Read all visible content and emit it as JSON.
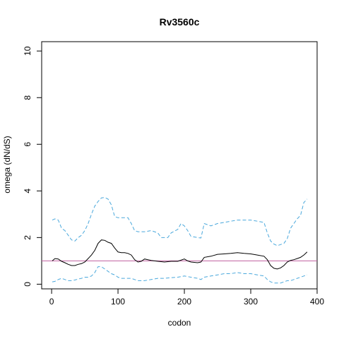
{
  "chart_data": {
    "type": "line",
    "title": "Rv3560c",
    "xlabel": "codon",
    "ylabel": "omega (dN/dS)",
    "xlim": [
      -15,
      400
    ],
    "ylim": [
      -0.2,
      10.4
    ],
    "xticks": [
      0,
      100,
      200,
      300,
      400
    ],
    "yticks": [
      0,
      2,
      4,
      6,
      8,
      10
    ],
    "reference_line": {
      "y": 1,
      "color": "#c060a0"
    },
    "grid": false,
    "legend": "none",
    "series": [
      {
        "color": "#000000",
        "dash": "solid",
        "points": [
          [
            1,
            1.0
          ],
          [
            5,
            1.1
          ],
          [
            10,
            1.08
          ],
          [
            15,
            0.98
          ],
          [
            20,
            0.92
          ],
          [
            25,
            0.85
          ],
          [
            30,
            0.8
          ],
          [
            35,
            0.8
          ],
          [
            40,
            0.85
          ],
          [
            45,
            0.88
          ],
          [
            50,
            0.95
          ],
          [
            55,
            1.1
          ],
          [
            60,
            1.25
          ],
          [
            65,
            1.45
          ],
          [
            70,
            1.75
          ],
          [
            75,
            1.9
          ],
          [
            80,
            1.88
          ],
          [
            85,
            1.8
          ],
          [
            90,
            1.75
          ],
          [
            95,
            1.55
          ],
          [
            100,
            1.38
          ],
          [
            105,
            1.35
          ],
          [
            110,
            1.35
          ],
          [
            115,
            1.32
          ],
          [
            120,
            1.25
          ],
          [
            125,
            1.05
          ],
          [
            130,
            0.95
          ],
          [
            135,
            0.98
          ],
          [
            140,
            1.08
          ],
          [
            145,
            1.05
          ],
          [
            150,
            1.02
          ],
          [
            160,
            0.98
          ],
          [
            170,
            0.95
          ],
          [
            180,
            0.98
          ],
          [
            190,
            0.98
          ],
          [
            200,
            1.08
          ],
          [
            205,
            1.0
          ],
          [
            210,
            0.95
          ],
          [
            220,
            0.92
          ],
          [
            225,
            0.95
          ],
          [
            230,
            1.15
          ],
          [
            240,
            1.2
          ],
          [
            250,
            1.28
          ],
          [
            260,
            1.3
          ],
          [
            270,
            1.32
          ],
          [
            280,
            1.35
          ],
          [
            290,
            1.32
          ],
          [
            300,
            1.3
          ],
          [
            310,
            1.25
          ],
          [
            320,
            1.2
          ],
          [
            325,
            1.05
          ],
          [
            330,
            0.8
          ],
          [
            335,
            0.68
          ],
          [
            340,
            0.65
          ],
          [
            345,
            0.7
          ],
          [
            350,
            0.8
          ],
          [
            355,
            0.95
          ],
          [
            360,
            1.02
          ],
          [
            365,
            1.05
          ],
          [
            370,
            1.1
          ],
          [
            375,
            1.15
          ],
          [
            380,
            1.25
          ],
          [
            385,
            1.38
          ]
        ]
      },
      {
        "color": "#4aa8dc",
        "dash": "dashed",
        "points": [
          [
            1,
            2.75
          ],
          [
            5,
            2.8
          ],
          [
            10,
            2.75
          ],
          [
            15,
            2.4
          ],
          [
            20,
            2.3
          ],
          [
            25,
            2.1
          ],
          [
            30,
            1.9
          ],
          [
            35,
            1.85
          ],
          [
            40,
            2.0
          ],
          [
            45,
            2.1
          ],
          [
            50,
            2.3
          ],
          [
            55,
            2.6
          ],
          [
            60,
            3.0
          ],
          [
            65,
            3.35
          ],
          [
            70,
            3.55
          ],
          [
            75,
            3.7
          ],
          [
            80,
            3.72
          ],
          [
            85,
            3.65
          ],
          [
            90,
            3.4
          ],
          [
            95,
            2.9
          ],
          [
            100,
            2.85
          ],
          [
            110,
            2.85
          ],
          [
            115,
            2.85
          ],
          [
            120,
            2.6
          ],
          [
            125,
            2.3
          ],
          [
            130,
            2.25
          ],
          [
            140,
            2.25
          ],
          [
            150,
            2.3
          ],
          [
            155,
            2.25
          ],
          [
            160,
            2.2
          ],
          [
            165,
            2.0
          ],
          [
            175,
            2.0
          ],
          [
            180,
            2.2
          ],
          [
            190,
            2.35
          ],
          [
            195,
            2.6
          ],
          [
            200,
            2.5
          ],
          [
            205,
            2.3
          ],
          [
            210,
            2.05
          ],
          [
            220,
            2.0
          ],
          [
            225,
            1.98
          ],
          [
            230,
            2.6
          ],
          [
            240,
            2.5
          ],
          [
            250,
            2.6
          ],
          [
            260,
            2.65
          ],
          [
            270,
            2.7
          ],
          [
            280,
            2.75
          ],
          [
            290,
            2.75
          ],
          [
            300,
            2.75
          ],
          [
            310,
            2.7
          ],
          [
            320,
            2.65
          ],
          [
            325,
            2.2
          ],
          [
            330,
            1.85
          ],
          [
            335,
            1.72
          ],
          [
            340,
            1.65
          ],
          [
            350,
            1.75
          ],
          [
            355,
            1.95
          ],
          [
            360,
            2.4
          ],
          [
            365,
            2.6
          ],
          [
            370,
            2.8
          ],
          [
            375,
            2.95
          ],
          [
            380,
            3.5
          ],
          [
            385,
            3.65
          ]
        ]
      },
      {
        "color": "#4aa8dc",
        "dash": "dashed",
        "points": [
          [
            1,
            0.1
          ],
          [
            5,
            0.12
          ],
          [
            10,
            0.2
          ],
          [
            15,
            0.25
          ],
          [
            20,
            0.2
          ],
          [
            25,
            0.15
          ],
          [
            30,
            0.15
          ],
          [
            35,
            0.18
          ],
          [
            40,
            0.22
          ],
          [
            45,
            0.25
          ],
          [
            50,
            0.3
          ],
          [
            55,
            0.3
          ],
          [
            60,
            0.35
          ],
          [
            65,
            0.5
          ],
          [
            70,
            0.75
          ],
          [
            75,
            0.75
          ],
          [
            80,
            0.65
          ],
          [
            85,
            0.55
          ],
          [
            90,
            0.45
          ],
          [
            95,
            0.4
          ],
          [
            100,
            0.3
          ],
          [
            105,
            0.25
          ],
          [
            110,
            0.25
          ],
          [
            115,
            0.25
          ],
          [
            120,
            0.25
          ],
          [
            125,
            0.2
          ],
          [
            130,
            0.15
          ],
          [
            140,
            0.15
          ],
          [
            150,
            0.2
          ],
          [
            160,
            0.25
          ],
          [
            170,
            0.25
          ],
          [
            180,
            0.28
          ],
          [
            190,
            0.3
          ],
          [
            200,
            0.35
          ],
          [
            210,
            0.3
          ],
          [
            220,
            0.25
          ],
          [
            225,
            0.2
          ],
          [
            230,
            0.3
          ],
          [
            240,
            0.35
          ],
          [
            250,
            0.4
          ],
          [
            260,
            0.45
          ],
          [
            270,
            0.45
          ],
          [
            280,
            0.5
          ],
          [
            290,
            0.45
          ],
          [
            300,
            0.45
          ],
          [
            310,
            0.4
          ],
          [
            320,
            0.35
          ],
          [
            325,
            0.2
          ],
          [
            330,
            0.1
          ],
          [
            335,
            0.05
          ],
          [
            340,
            0.05
          ],
          [
            345,
            0.05
          ],
          [
            350,
            0.1
          ],
          [
            355,
            0.15
          ],
          [
            360,
            0.15
          ],
          [
            365,
            0.2
          ],
          [
            370,
            0.25
          ],
          [
            375,
            0.3
          ],
          [
            380,
            0.35
          ],
          [
            385,
            0.4
          ]
        ]
      }
    ]
  }
}
